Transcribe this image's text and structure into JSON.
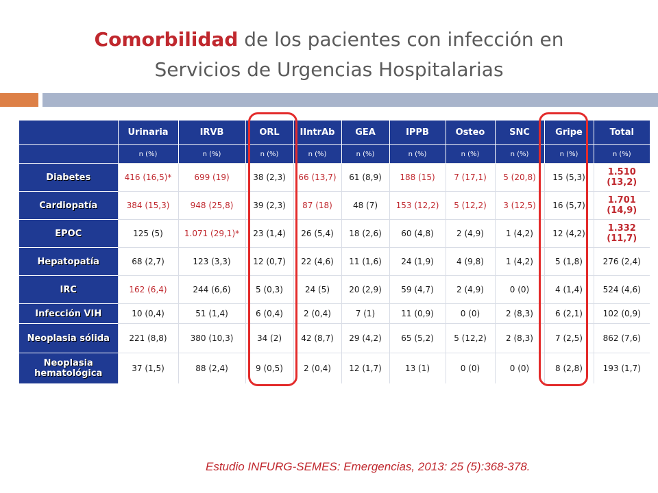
{
  "title": {
    "highlight": "Comorbilidad",
    "rest_line1": " de los pacientes con infección en",
    "line2": "Servicios de Urgencias Hospitalarias"
  },
  "table": {
    "columns": [
      "Urinaria",
      "IRVB",
      "ORL",
      "IIntrAb",
      "GEA",
      "IPPB",
      "Osteo",
      "SNC",
      "Gripe",
      "Total"
    ],
    "subheader": [
      "n (%)",
      "n (%)",
      "n (%)",
      "n (%)",
      "n (%)",
      "n (%)",
      "n (%)",
      "n (%)",
      "n (%)",
      "n (%)"
    ],
    "rows": [
      {
        "label": "Diabetes",
        "values": [
          "416 (16,5)*",
          "699 (19)",
          "38 (2,3)",
          "66 (13,7)",
          "61 (8,9)",
          "188 (15)",
          "7 (17,1)",
          "5 (20,8)",
          "15 (5,3)",
          "1.510 (13,2)"
        ]
      },
      {
        "label": "Cardiopatía",
        "values": [
          "384 (15,3)",
          "948 (25,8)",
          "39 (2,3)",
          "87 (18)",
          "48 (7)",
          "153 (12,2)",
          "5 (12,2)",
          "3 (12,5)",
          "16 (5,7)",
          "1.701 (14,9)"
        ]
      },
      {
        "label": "EPOC",
        "values": [
          "125 (5)",
          "1.071 (29,1)*",
          "23 (1,4)",
          "26 (5,4)",
          "18 (2,6)",
          "60 (4,8)",
          "2 (4,9)",
          "1 (4,2)",
          "12 (4,2)",
          "1.332 (11,7)"
        ]
      },
      {
        "label": "Hepatopatía",
        "values": [
          "68 (2,7)",
          "123 (3,3)",
          "12 (0,7)",
          "22 (4,6)",
          "11 (1,6)",
          "24 (1,9)",
          "4 (9,8)",
          "1 (4,2)",
          "5 (1,8)",
          "276 (2,4)"
        ]
      },
      {
        "label": "IRC",
        "values": [
          "162 (6,4)",
          "244 (6,6)",
          "5 (0,3)",
          "24 (5)",
          "20 (2,9)",
          "59 (4,7)",
          "2 (4,9)",
          "0 (0)",
          "4 (1,4)",
          "524 (4,6)"
        ]
      },
      {
        "label": "Infección VIH",
        "values": [
          "10 (0,4)",
          "51 (1,4)",
          "6 (0,4)",
          "2 (0,4)",
          "7 (1)",
          "11 (0,9)",
          "0 (0)",
          "2 (8,3)",
          "6 (2,1)",
          "102 (0,9)"
        ]
      },
      {
        "label": "Neoplasia sólida",
        "values": [
          "221 (8,8)",
          "380 (10,3)",
          "34 (2)",
          "42 (8,7)",
          "29 (4,2)",
          "65 (5,2)",
          "5 (12,2)",
          "2 (8,3)",
          "7 (2,5)",
          "862 (7,6)"
        ]
      },
      {
        "label": "Neoplasia hematológica",
        "values": [
          "37 (1,5)",
          "88 (2,4)",
          "9 (0,5)",
          "2 (0,4)",
          "12 (1,7)",
          "13 (1)",
          "0 (0)",
          "0 (0)",
          "8 (2,8)",
          "193 (1,7)"
        ]
      }
    ]
  },
  "highlighted_columns": [
    "ORL",
    "Gripe"
  ],
  "colors": {
    "accent_red": "#c0282e",
    "header_blue": "#1f3a93",
    "bar_orange": "#dd8047",
    "bar_grey_blue": "#a8b4cb",
    "circle_red": "#e32b2b"
  },
  "citation": "Estudio INFURG-SEMES: Emergencias, 2013: 25 (5):368-378."
}
